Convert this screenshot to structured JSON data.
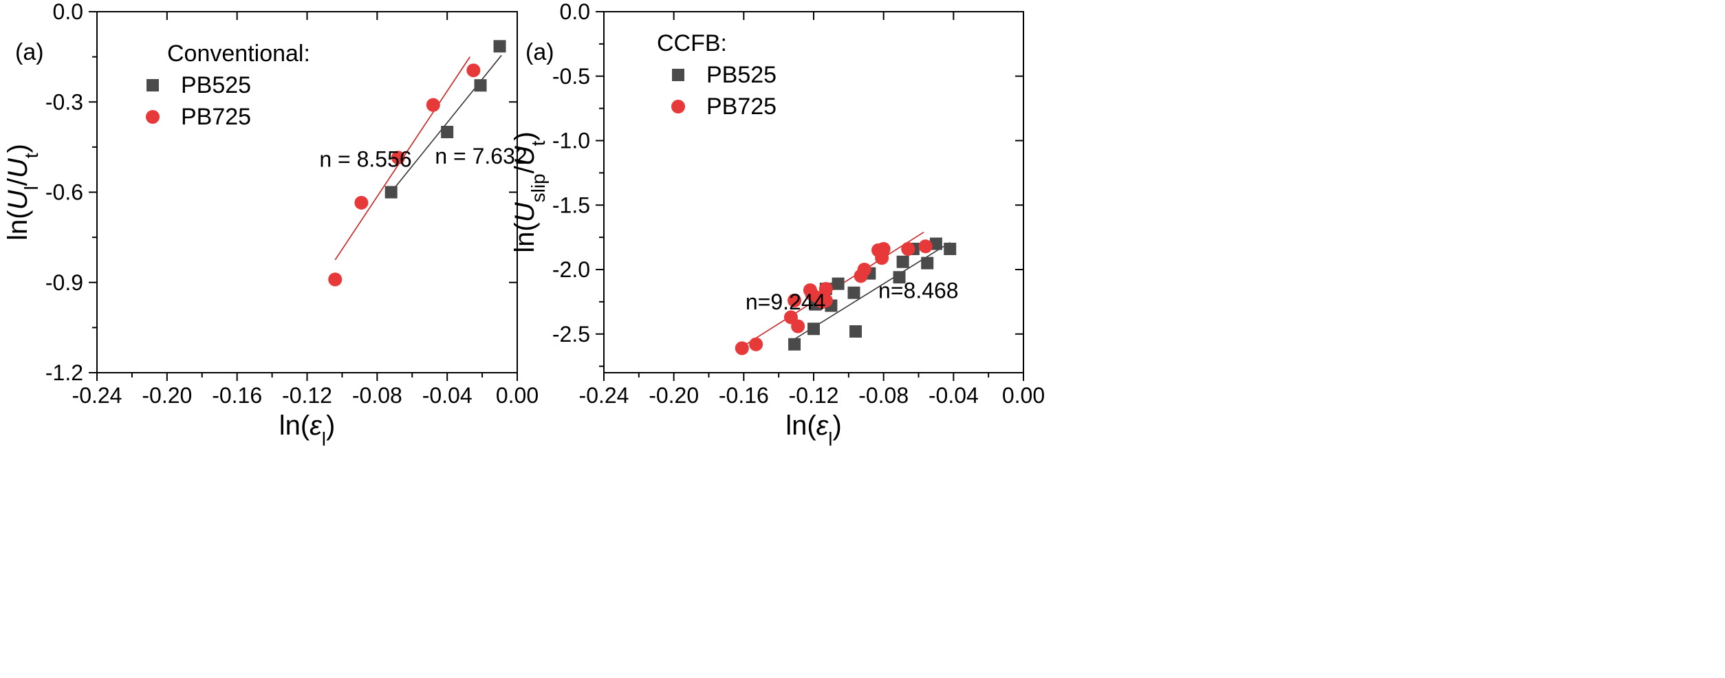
{
  "colors": {
    "PB525": "#4a4a4a",
    "PB725": "#e8393a",
    "PB525_fit": "#333333",
    "PB725_fit": "#cc1f1f"
  },
  "chart_data": [
    {
      "type": "scatter",
      "panel_label": "(a)",
      "xlabel": "ln(ε_l)",
      "ylabel": "ln(U_l/U_t)",
      "xlim": [
        -0.24,
        0.0
      ],
      "ylim": [
        -1.2,
        0.0
      ],
      "x_ticks": [
        "-0.24",
        "-0.20",
        "-0.16",
        "-0.12",
        "-0.08",
        "-0.04",
        "0.00"
      ],
      "y_ticks": [
        "0.0",
        "-0.3",
        "-0.6",
        "-0.9",
        "-1.2"
      ],
      "legend": {
        "title": "Conventional:",
        "position": "top-left"
      },
      "series": [
        {
          "name": "PB525",
          "marker": "square",
          "x": [
            -0.072,
            -0.04,
            -0.021,
            -0.01
          ],
          "y": [
            -0.6,
            -0.4,
            -0.245,
            -0.115
          ],
          "fit": {
            "x1": -0.072,
            "y1": -0.6,
            "x2": -0.009,
            "y2": -0.145
          }
        },
        {
          "name": "PB725",
          "marker": "circle",
          "x": [
            -0.104,
            -0.089,
            -0.068,
            -0.048,
            -0.025
          ],
          "y": [
            -0.89,
            -0.635,
            -0.485,
            -0.31,
            -0.195
          ],
          "fit": {
            "x1": -0.104,
            "y1": -0.825,
            "x2": -0.027,
            "y2": -0.15
          }
        }
      ],
      "annotations": [
        {
          "text": "n = 8.556",
          "x": -0.113,
          "y": -0.515
        },
        {
          "text": "n = 7.632",
          "x": -0.047,
          "y": -0.505
        }
      ]
    },
    {
      "type": "scatter",
      "panel_label": "(a)",
      "xlabel": "ln(ε_l)",
      "ylabel": "ln(U_slip/U_t)",
      "xlim": [
        -0.24,
        0.0
      ],
      "ylim": [
        -2.8,
        0.0
      ],
      "x_ticks": [
        "-0.24",
        "-0.20",
        "-0.16",
        "-0.12",
        "-0.08",
        "-0.04",
        "0.00"
      ],
      "y_ticks": [
        "0.0",
        "-0.5",
        "-1.0",
        "-1.5",
        "-2.0",
        "-2.5"
      ],
      "y_tick_values": [
        0.0,
        -0.5,
        -1.0,
        -1.5,
        -2.0,
        -2.5
      ],
      "legend": {
        "title": "CCFB:",
        "position": "top-left"
      },
      "series": [
        {
          "name": "PB525",
          "marker": "square",
          "x": [
            -0.131,
            -0.12,
            -0.119,
            -0.113,
            -0.11,
            -0.106,
            -0.097,
            -0.096,
            -0.088,
            -0.071,
            -0.069,
            -0.063,
            -0.055,
            -0.05,
            -0.042
          ],
          "y": [
            -2.58,
            -2.46,
            -2.27,
            -2.15,
            -2.28,
            -2.11,
            -2.18,
            -2.48,
            -2.03,
            -2.06,
            -1.94,
            -1.84,
            -1.95,
            -1.8,
            -1.84
          ],
          "fit": {
            "x1": -0.131,
            "y1": -2.54,
            "x2": -0.042,
            "y2": -1.79
          }
        },
        {
          "name": "PB725",
          "marker": "circle",
          "x": [
            -0.161,
            -0.153,
            -0.133,
            -0.131,
            -0.129,
            -0.122,
            -0.121,
            -0.117,
            -0.115,
            -0.113,
            -0.113,
            -0.093,
            -0.091,
            -0.083,
            -0.081,
            -0.08,
            -0.066,
            -0.056
          ],
          "y": [
            -2.61,
            -2.58,
            -2.37,
            -2.24,
            -2.44,
            -2.16,
            -2.19,
            -2.22,
            -2.25,
            -2.24,
            -2.15,
            -2.05,
            -2.0,
            -1.85,
            -1.91,
            -1.84,
            -1.84,
            -1.82
          ],
          "fit": {
            "x1": -0.161,
            "y1": -2.6,
            "x2": -0.057,
            "y2": -1.71
          }
        }
      ],
      "annotations": [
        {
          "text": "n=9.244",
          "x": -0.159,
          "y": -2.31
        },
        {
          "text": "n=8.468",
          "x": -0.083,
          "y": -2.22
        }
      ]
    }
  ]
}
